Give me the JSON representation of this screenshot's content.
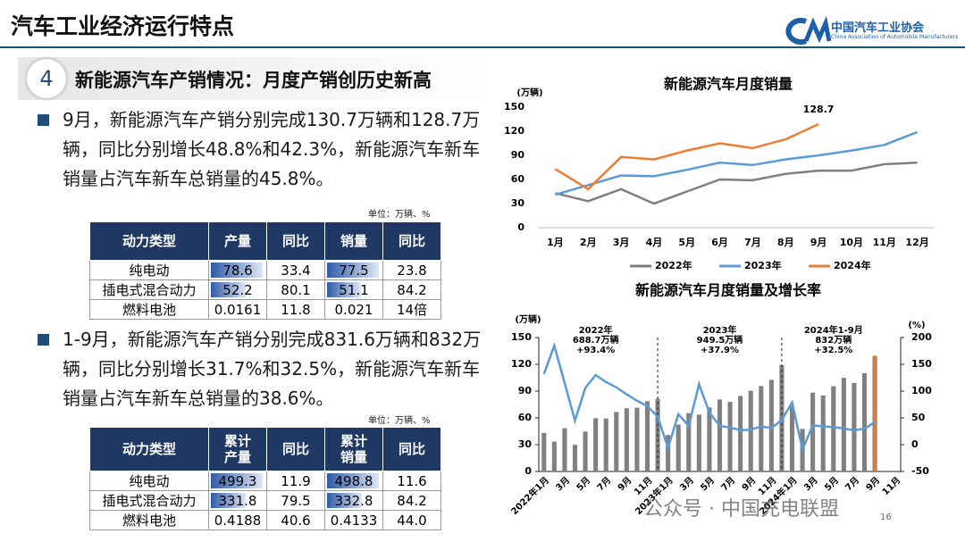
{
  "header": {
    "title": "汽车工业经济运行特点",
    "logo_cn": "中国汽车工业协会",
    "logo_en": "China Association of Automobile Manufacturers"
  },
  "section": {
    "number": "4",
    "title": "新能源汽车产销情况：月度产销创历史新高"
  },
  "paragraphs": [
    "9月，新能源汽车产销分别完成130.7万辆和128.7万辆，同比分别增长48.8%和42.3%，新能源汽车新车销量占汽车新车总销量的45.8%。",
    "1-9月，新能源汽车产销分别完成831.6万辆和832万辆，同比分别增长31.7%和32.5%，新能源汽车新车销量占汽车新车总销量的38.6%。"
  ],
  "tables": [
    {
      "unit": "单位：万辆、%",
      "header": [
        "动力类型",
        "产量",
        "同比",
        "销量",
        "同比"
      ],
      "rows": [
        [
          "纯电动",
          "78.6",
          "33.4",
          "77.5",
          "23.8"
        ],
        [
          "插电式混合动力",
          "52.2",
          "80.1",
          "51.1",
          "84.2"
        ],
        [
          "燃料电池",
          "0.0161",
          "11.8",
          "0.021",
          "14倍"
        ]
      ]
    },
    {
      "unit": "单位：万辆、%",
      "header": [
        "动力类型",
        "累计\n产量",
        "同比",
        "累计\n销量",
        "同比"
      ],
      "rows": [
        [
          "纯电动",
          "499.3",
          "11.9",
          "498.8",
          "11.6"
        ],
        [
          "插电式混合动力",
          "331.8",
          "79.5",
          "332.8",
          "84.2"
        ],
        [
          "燃料电池",
          "0.4188",
          "40.6",
          "0.4133",
          "44.0"
        ]
      ]
    }
  ],
  "chart_data": [
    {
      "type": "line",
      "title": "新能源汽车月度销量",
      "y_label": "(万辆)",
      "categories": [
        "1月",
        "2月",
        "3月",
        "4月",
        "5月",
        "6月",
        "7月",
        "8月",
        "9月",
        "10月",
        "11月",
        "12月"
      ],
      "ylim": [
        0,
        150
      ],
      "yticks": [
        0,
        30,
        60,
        90,
        120,
        150
      ],
      "grid": false,
      "series": [
        {
          "name": "2022年",
          "color": "#7f7f7f",
          "values": [
            43,
            33,
            48,
            30,
            45,
            60,
            59,
            67,
            71,
            71,
            79,
            81
          ]
        },
        {
          "name": "2023年",
          "color": "#5b9bd5",
          "values": [
            41,
            53,
            65,
            64,
            72,
            81,
            78,
            85,
            90,
            96,
            103,
            119
          ]
        },
        {
          "name": "2024年",
          "color": "#ed7d31",
          "values": [
            73,
            48,
            88,
            85,
            96,
            105,
            99,
            110,
            128.7,
            null,
            null,
            null
          ],
          "value_labels": [
            null,
            null,
            null,
            null,
            null,
            null,
            null,
            null,
            "128.7",
            null,
            null,
            null
          ]
        }
      ]
    },
    {
      "type": "combo",
      "title": "新能源汽车月度销量及增长率",
      "y_label": "(万辆)",
      "y2_label": "(%)",
      "categories": [
        "2022年1月",
        null,
        "3月",
        null,
        "5月",
        null,
        "7月",
        null,
        "9月",
        null,
        "11月",
        null,
        "2023年1月",
        null,
        "3月",
        null,
        "5月",
        null,
        "7月",
        null,
        "9月",
        null,
        "11月",
        null,
        "2024年1月",
        null,
        "3月",
        null,
        "5月",
        null,
        "7月",
        null,
        "9月",
        null,
        "11月"
      ],
      "ylim": [
        0,
        150
      ],
      "yticks": [
        0,
        30,
        60,
        90,
        120,
        150
      ],
      "y2lim": [
        -50,
        200
      ],
      "y2ticks": [
        -50,
        0,
        50,
        100,
        150,
        200
      ],
      "series": [
        {
          "type": "bar",
          "color": "#808080",
          "values": [
            43.1,
            33.4,
            48.4,
            29.9,
            44.7,
            59.6,
            59.3,
            66.6,
            70.8,
            71.4,
            78.6,
            81.4,
            40.8,
            52.5,
            65.3,
            63.6,
            71.7,
            80.6,
            78.0,
            84.6,
            90.4,
            95.6,
            102.6,
            119.1,
            72.9,
            47.7,
            88.3,
            85.0,
            95.5,
            104.9,
            99.1,
            110.0,
            128.7,
            null,
            null
          ]
        },
        {
          "type": "line",
          "axis": "y2",
          "color": "#5b9bd5",
          "values": [
            132,
            185,
            115,
            45,
            106,
            130,
            117,
            107,
            94,
            82,
            72,
            52,
            -6,
            57,
            35,
            113,
            60,
            35,
            32,
            27,
            28,
            34,
            31,
            46,
            79,
            -9,
            36,
            34,
            33,
            30,
            27,
            30,
            42,
            null,
            null
          ]
        }
      ],
      "annotations": [
        [
          "2022年",
          "688.7万辆",
          "+93.4%"
        ],
        [
          "2023年",
          "949.5万辆",
          "+37.9%"
        ],
        [
          "2024年1-9月",
          "832万辆",
          "+32.5%"
        ]
      ]
    }
  ],
  "watermark": "公众号 · 中国充电联盟",
  "page_number": "16"
}
